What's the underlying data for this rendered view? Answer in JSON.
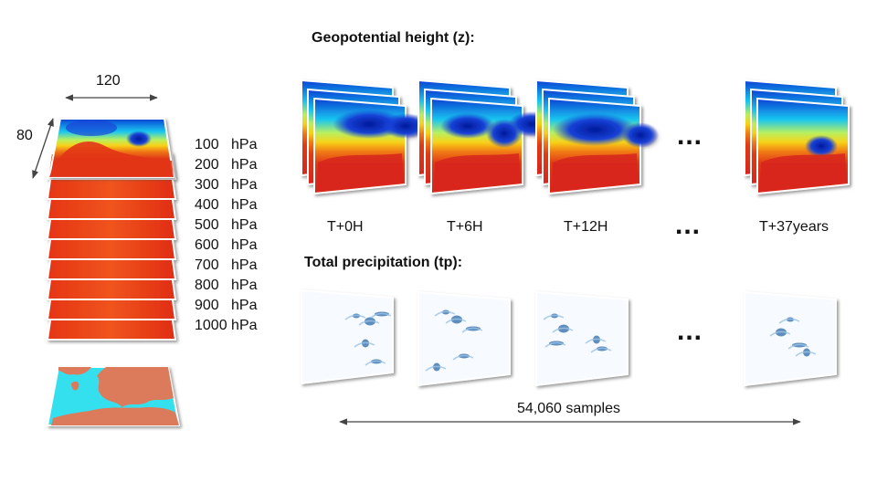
{
  "geopotential": {
    "title": "Geopotential height (z):",
    "time_labels": [
      "T+0H",
      "T+6H",
      "T+12H",
      "T+37years"
    ],
    "ellipsis": "..."
  },
  "precipitation": {
    "title": "Total precipitation (tp):",
    "ellipsis": "..."
  },
  "grid": {
    "width": "120",
    "height": "80"
  },
  "levels": [
    "100   hPa",
    "200   hPa",
    "300   hPa",
    "400   hPa",
    "500   hPa",
    "600   hPa",
    "700   hPa",
    "800   hPa",
    "900   hPa",
    "1000 hPa"
  ],
  "samples": "54,060 samples",
  "colors": {
    "field_high": "#d9261c",
    "field_low": "#1a3fd0",
    "precip_blue": "#2b6aa8",
    "ocean": "#36e0ee",
    "land": "#dc7a5c"
  }
}
